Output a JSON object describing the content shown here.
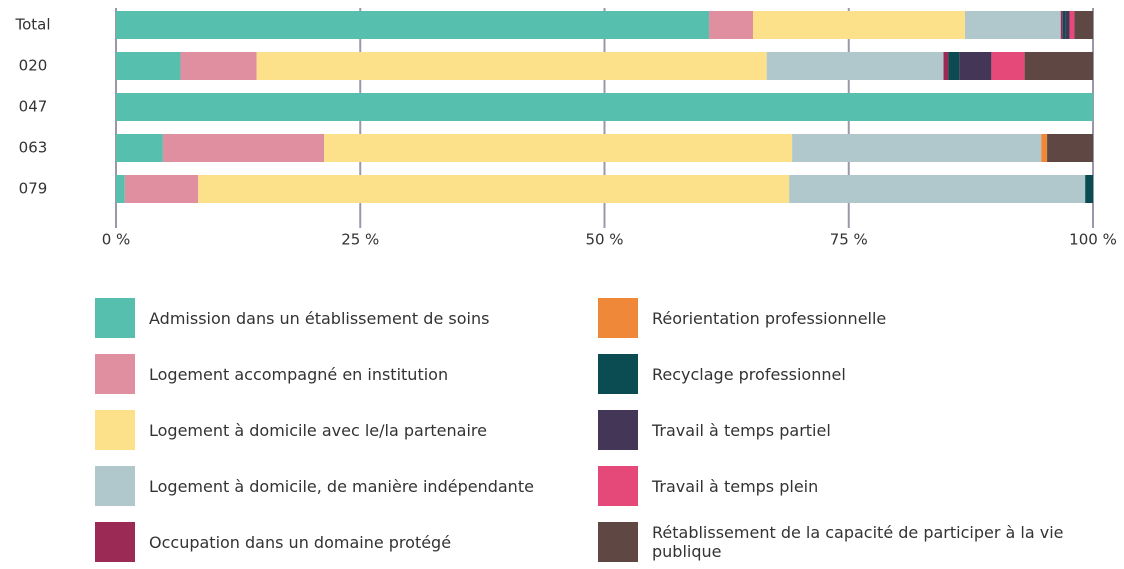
{
  "chart_data": {
    "type": "stacked-bar-horizontal",
    "categories": [
      "Total",
      "020",
      "047",
      "063",
      "079"
    ],
    "series": [
      {
        "name": "Admission dans un établissement de soins",
        "color": "#57bfae",
        "values": [
          60.7,
          6.6,
          100,
          4.8,
          0.9
        ]
      },
      {
        "name": "Logement accompagné en institution",
        "color": "#e08fa0",
        "values": [
          4.5,
          7.8,
          0,
          16.5,
          7.5
        ]
      },
      {
        "name": "Logement à domicile avec le/la partenaire",
        "color": "#fce08a",
        "values": [
          21.7,
          52.2,
          0,
          47.9,
          60.5
        ]
      },
      {
        "name": "Logement à domicile, de manière indépendante",
        "color": "#b0c8cc",
        "values": [
          9.8,
          18.1,
          0,
          25.5,
          30.3
        ]
      },
      {
        "name": "Occupation dans un domaine protégé",
        "color": "#9b2a55",
        "values": [
          0.2,
          0.5,
          0,
          0,
          0
        ]
      },
      {
        "name": "Réorientation professionnelle",
        "color": "#f0883a",
        "values": [
          0,
          0,
          0,
          0.6,
          0
        ]
      },
      {
        "name": "Recyclage professionnel",
        "color": "#0a4c52",
        "values": [
          0.3,
          1.1,
          0,
          0,
          0.8
        ]
      },
      {
        "name": "Travail à temps partiel",
        "color": "#433657",
        "values": [
          0.4,
          3.3,
          0,
          0,
          0
        ]
      },
      {
        "name": "Travail à temps plein",
        "color": "#e5497a",
        "values": [
          0.5,
          3.4,
          0,
          0,
          0
        ]
      },
      {
        "name": "Rétablissement de la capacité de participer à la vie publique",
        "color": "#5f4843",
        "values": [
          1.9,
          7.0,
          0,
          4.7,
          0
        ]
      }
    ],
    "xlim": [
      0,
      100
    ],
    "xticks": [
      {
        "value": 0,
        "label": "0 %"
      },
      {
        "value": 25,
        "label": "25 %"
      },
      {
        "value": 50,
        "label": "50 %"
      },
      {
        "value": 75,
        "label": "75 %"
      },
      {
        "value": 100,
        "label": "100 %"
      }
    ],
    "grid": true
  }
}
